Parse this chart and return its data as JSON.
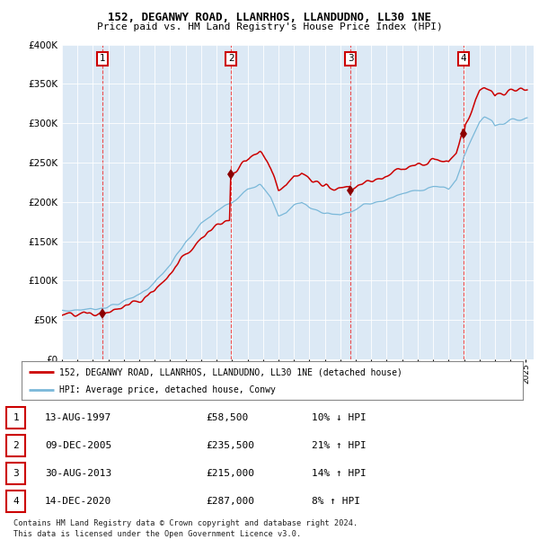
{
  "title1": "152, DEGANWY ROAD, LLANRHOS, LLANDUDNO, LL30 1NE",
  "title2": "Price paid vs. HM Land Registry's House Price Index (HPI)",
  "legend_line1": "152, DEGANWY ROAD, LLANRHOS, LLANDUDNO, LL30 1NE (detached house)",
  "legend_line2": "HPI: Average price, detached house, Conwy",
  "sales": [
    {
      "label": "1",
      "date": "13-AUG-1997",
      "year": 1997.62,
      "price": 58500,
      "pct": "10%",
      "dir": "↓"
    },
    {
      "label": "2",
      "date": "09-DEC-2005",
      "year": 2005.94,
      "price": 235500,
      "pct": "21%",
      "dir": "↑"
    },
    {
      "label": "3",
      "date": "30-AUG-2013",
      "year": 2013.66,
      "price": 215000,
      "pct": "14%",
      "dir": "↑"
    },
    {
      "label": "4",
      "date": "14-DEC-2020",
      "year": 2020.96,
      "price": 287000,
      "pct": "8%",
      "dir": "↑"
    }
  ],
  "table_rows": [
    [
      "1",
      "13-AUG-1997",
      "£58,500",
      "10% ↓ HPI"
    ],
    [
      "2",
      "09-DEC-2005",
      "£235,500",
      "21% ↑ HPI"
    ],
    [
      "3",
      "30-AUG-2013",
      "£215,000",
      "14% ↑ HPI"
    ],
    [
      "4",
      "14-DEC-2020",
      "£287,000",
      "8% ↑ HPI"
    ]
  ],
  "footer1": "Contains HM Land Registry data © Crown copyright and database right 2024.",
  "footer2": "This data is licensed under the Open Government Licence v3.0.",
  "hpi_color": "#7ab8d9",
  "price_color": "#cc0000",
  "marker_color": "#8b0000",
  "dashed_color": "#ee3333",
  "plot_bg": "#dce9f5",
  "label_box_color": "#cc0000",
  "xmin": 1995,
  "xmax": 2025.5,
  "ymin": 0,
  "ymax": 400000
}
